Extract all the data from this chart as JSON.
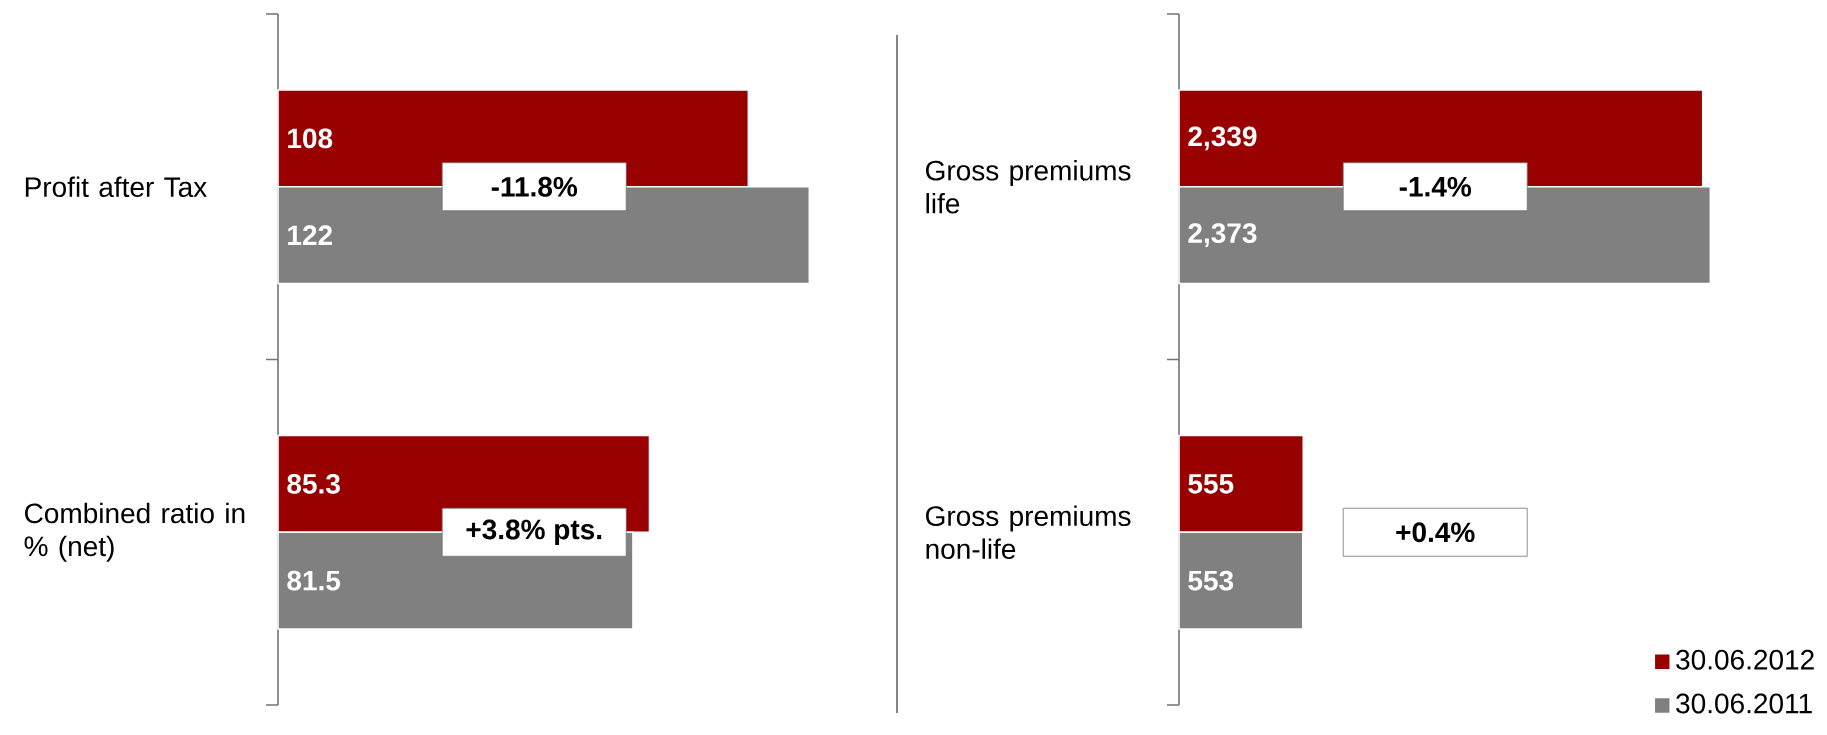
{
  "chart_data": [
    {
      "type": "bar",
      "orientation": "horizontal",
      "categories": [
        "Profit after Tax",
        "Combined ratio in % (net)"
      ],
      "series": [
        {
          "color": "#990000",
          "values": [
            108,
            85.3
          ],
          "value_labels": [
            "108",
            "85.3"
          ]
        },
        {
          "color": "#808080",
          "values": [
            122,
            81.5
          ],
          "value_labels": [
            "122",
            "81.5"
          ]
        }
      ],
      "tick_labels": "y",
      "annotations": [
        "-11.8%",
        "+3.8% pts."
      ]
    },
    {
      "type": "bar",
      "orientation": "horizontal",
      "categories": [
        "Gross premiums life",
        "Gross premiums non-life"
      ],
      "series": [
        {
          "name": "30.06.2012",
          "color": "#990000",
          "values": [
            2339,
            555
          ],
          "value_labels": [
            "2,339",
            "555"
          ]
        },
        {
          "name": "30.06.2011",
          "color": "#808080",
          "values": [
            2373,
            553
          ],
          "value_labels": [
            "2,373",
            "553"
          ]
        }
      ],
      "tick_labels": "y",
      "legend": "bottom right",
      "annotations": [
        "-1.4%",
        "+0.4%"
      ]
    }
  ]
}
